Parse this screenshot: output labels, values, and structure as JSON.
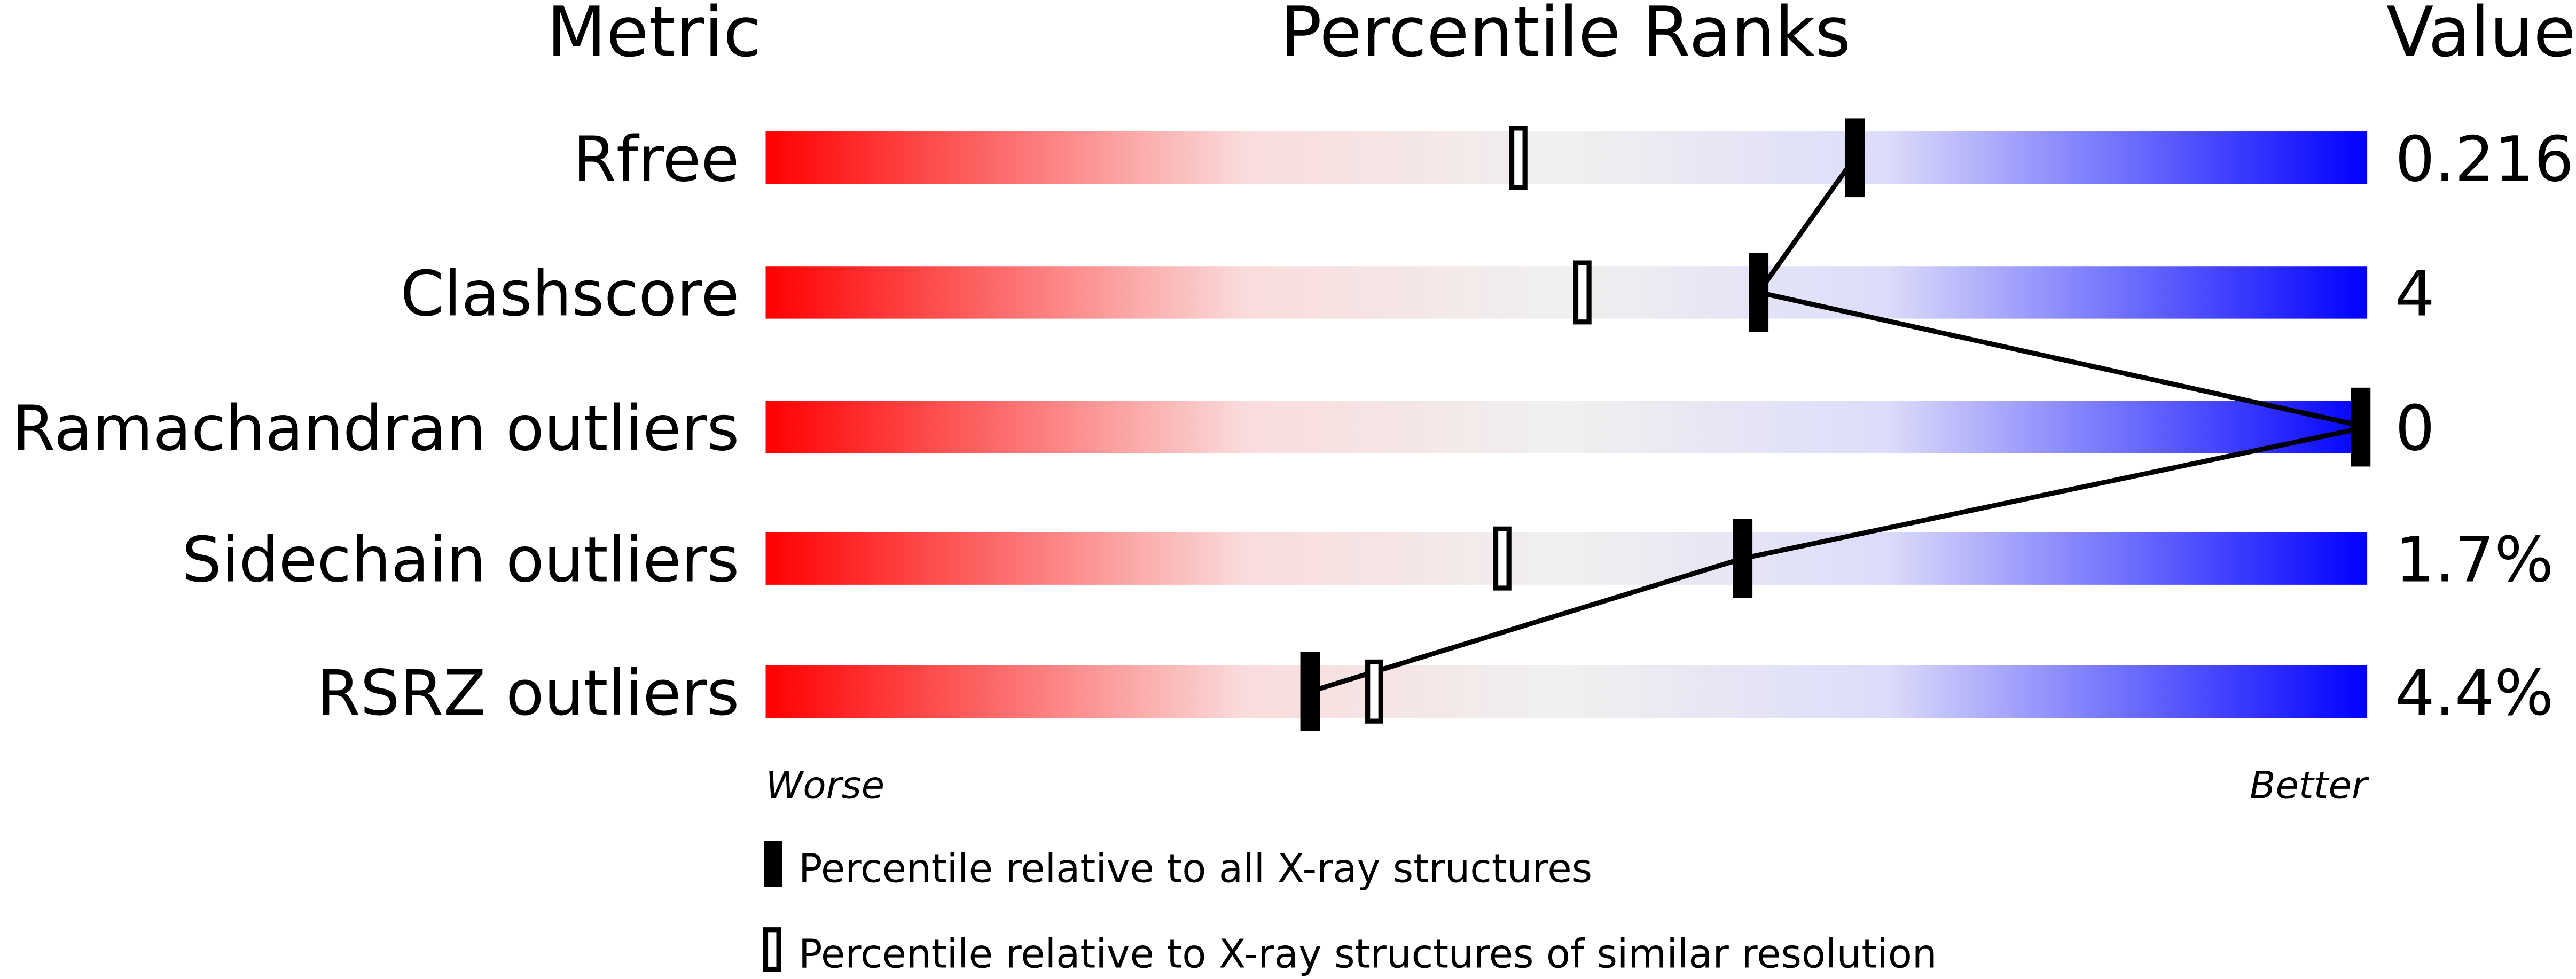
{
  "chart_data": {
    "type": "bar",
    "headers": {
      "metric": "Metric",
      "ranks": "Percentile Ranks",
      "value": "Value"
    },
    "xlim": [
      0,
      100
    ],
    "axis_labels": {
      "left": "Worse",
      "right": "Better"
    },
    "gradient_colors": [
      "#ff0000",
      "#fadcdc",
      "#f0f0f0",
      "#dcdcfa",
      "#0000ff"
    ],
    "metrics": [
      {
        "name": "Rfree",
        "value": "0.216",
        "percentile_all": 68,
        "percentile_similar": 47
      },
      {
        "name": "Clashscore",
        "value": "4",
        "percentile_all": 62,
        "percentile_similar": 51
      },
      {
        "name": "Ramachandran outliers",
        "value": "0",
        "percentile_all": 100,
        "percentile_similar": 100
      },
      {
        "name": "Sidechain outliers",
        "value": "1.7%",
        "percentile_all": 61,
        "percentile_similar": 46
      },
      {
        "name": "RSRZ outliers",
        "value": "4.4%",
        "percentile_all": 34,
        "percentile_similar": 38
      }
    ],
    "legend": [
      {
        "marker": "filled",
        "label": "Percentile relative to all X-ray structures"
      },
      {
        "marker": "hollow",
        "label": "Percentile relative to X-ray structures of similar resolution"
      }
    ]
  }
}
